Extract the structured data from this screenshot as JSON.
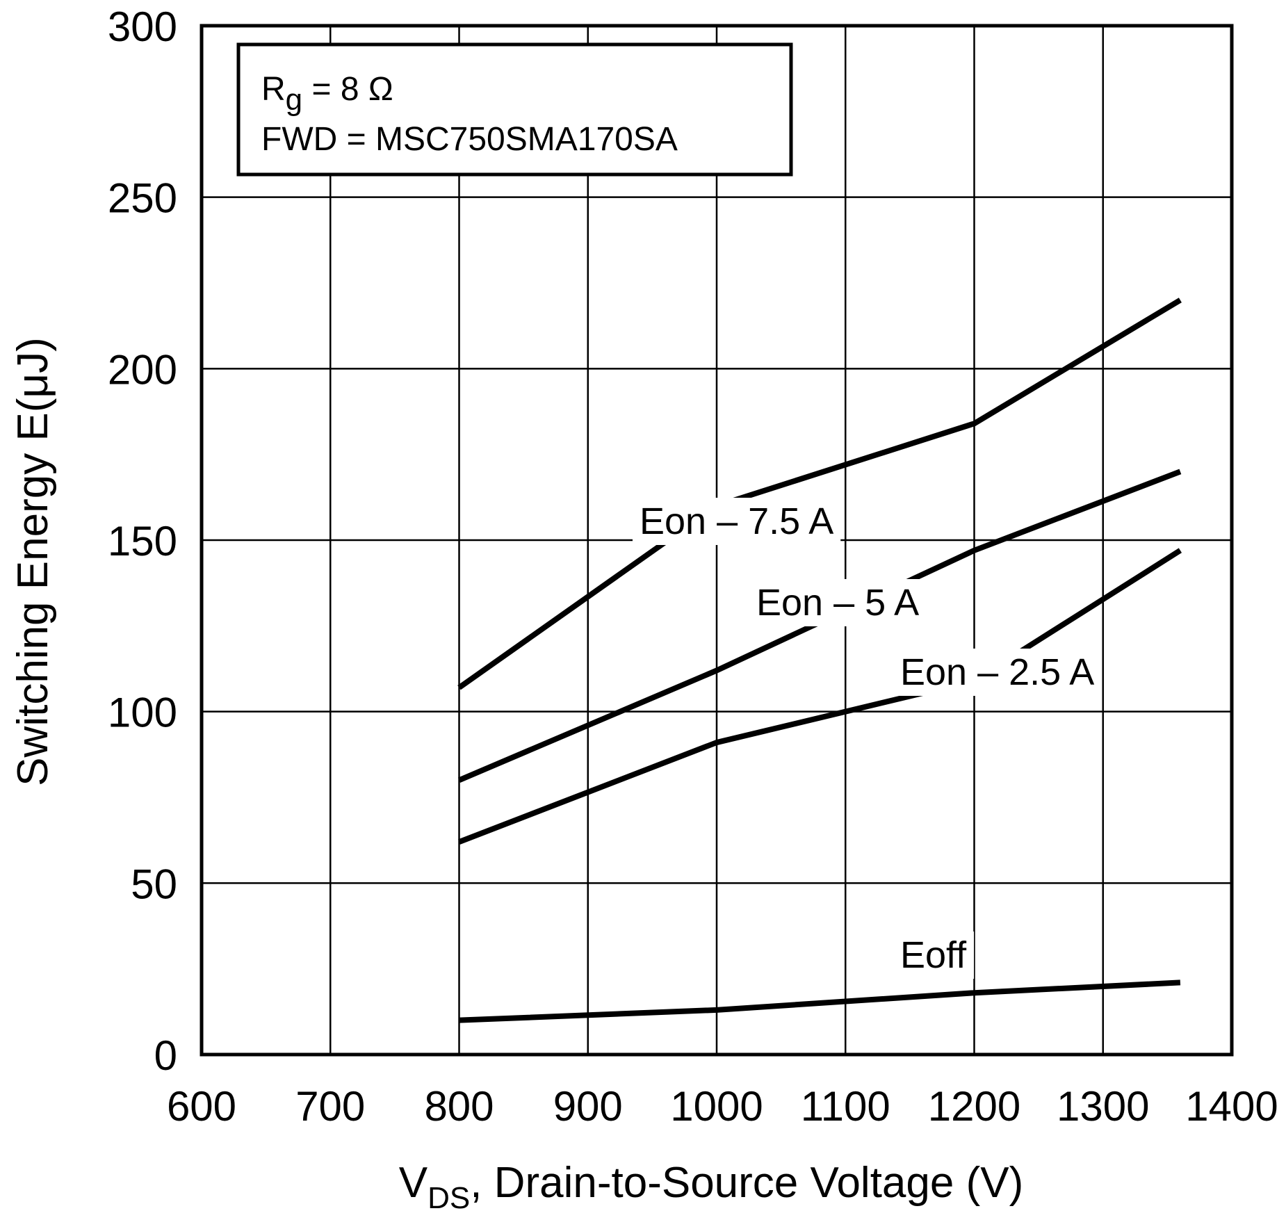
{
  "chart_data": {
    "type": "line",
    "title": "",
    "xlabel": {
      "main": "V",
      "sub": "DS",
      "rest": ", Drain-to-Source Voltage (V)"
    },
    "ylabel": "Switching Energy E(μJ)",
    "xlim": [
      600,
      1400
    ],
    "ylim": [
      0,
      300
    ],
    "grid": true,
    "x_ticks": [
      "600",
      "700",
      "800",
      "900",
      "1000",
      "1100",
      "1200",
      "1300",
      "1400"
    ],
    "y_ticks": [
      "0",
      "50",
      "100",
      "150",
      "200",
      "250",
      "300"
    ],
    "legend_box": {
      "line1_main": "R",
      "line1_sub": "g",
      "line1_rest": " = 8 Ω",
      "line2": "FWD = MSC750SMA170SA",
      "placement": "top-left"
    },
    "series": [
      {
        "name": "Eon – 7.5 A",
        "x": [
          800,
          1000,
          1200,
          1360
        ],
        "values": [
          107,
          160,
          184,
          220
        ]
      },
      {
        "name": "Eon – 5 A",
        "x": [
          800,
          1000,
          1200,
          1360
        ],
        "values": [
          80,
          112,
          147,
          170
        ]
      },
      {
        "name": "Eon – 2.5 A",
        "x": [
          800,
          1000,
          1200,
          1360
        ],
        "values": [
          62,
          91,
          109,
          147
        ]
      },
      {
        "name": "Eoff",
        "x": [
          800,
          1000,
          1200,
          1360
        ],
        "values": [
          10,
          13,
          18,
          21
        ]
      }
    ]
  }
}
